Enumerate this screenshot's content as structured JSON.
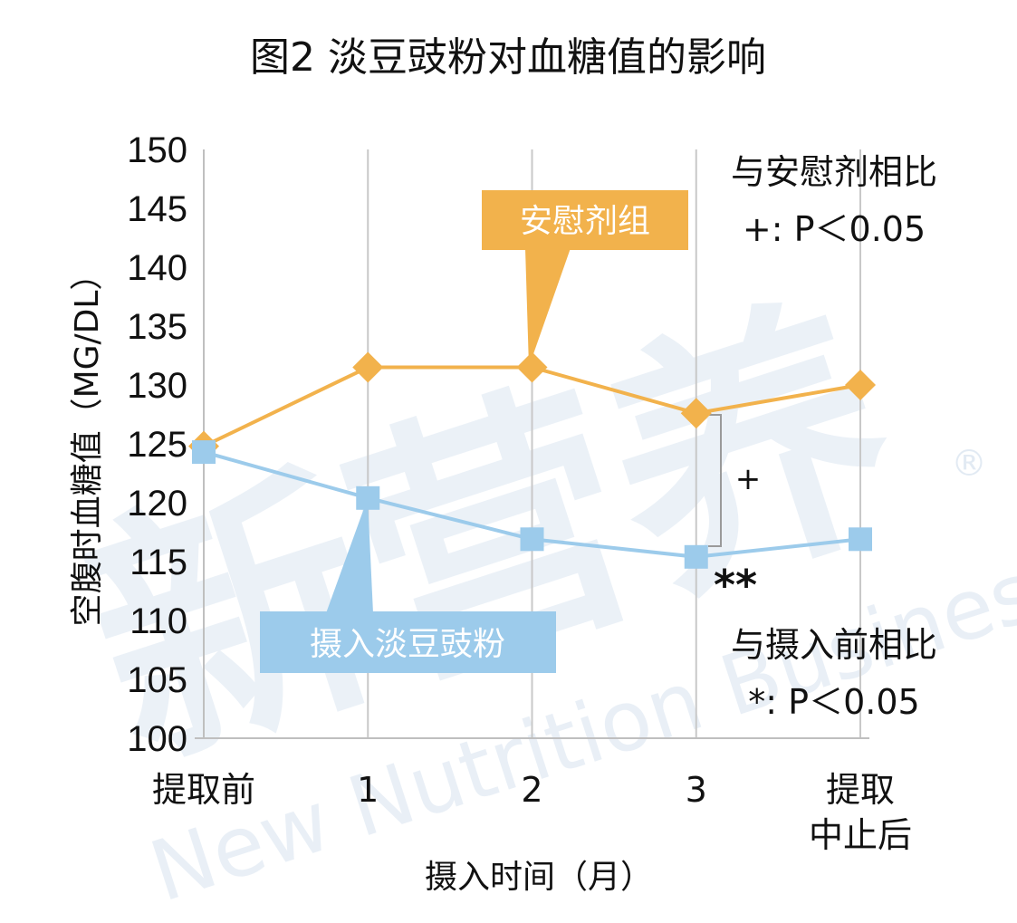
{
  "chart_data": {
    "type": "line",
    "title": "图2 淡豆豉粉对血糖值的影响",
    "xlabel": "摄入时间（月）",
    "ylabel": "空腹时血糖值（MG/DL）",
    "categories": [
      "提取前",
      "1",
      "2",
      "3",
      "提取中止后"
    ],
    "category_labels": [
      [
        "提取前"
      ],
      [
        "1"
      ],
      [
        "2"
      ],
      [
        "3"
      ],
      [
        "提取",
        "中止后"
      ]
    ],
    "ylim": [
      100,
      150
    ],
    "yticks": [
      100,
      105,
      110,
      115,
      120,
      125,
      130,
      135,
      140,
      145,
      150
    ],
    "grid": "vertical",
    "series": [
      {
        "name": "安慰剂组",
        "values": [
          124.8,
          131.5,
          131.5,
          127.6,
          130.0
        ],
        "color": "#f2b24c",
        "marker": "diamond"
      },
      {
        "name": "摄入淡豆豉粉",
        "values": [
          124.3,
          120.4,
          116.9,
          115.4,
          116.9
        ],
        "color": "#9ccbeb",
        "marker": "square"
      }
    ],
    "annotations": {
      "placebo_compare": "与安慰剂相比",
      "placebo_p": "+: P＜0.05",
      "placebo_mark": "+",
      "pre_compare": "与摄入前相比",
      "pre_p": "*: P＜0.05",
      "pre_mark": "**"
    }
  },
  "watermark": {
    "cn": "新营养",
    "en": "New Nutrition Business",
    "registered": "®"
  }
}
